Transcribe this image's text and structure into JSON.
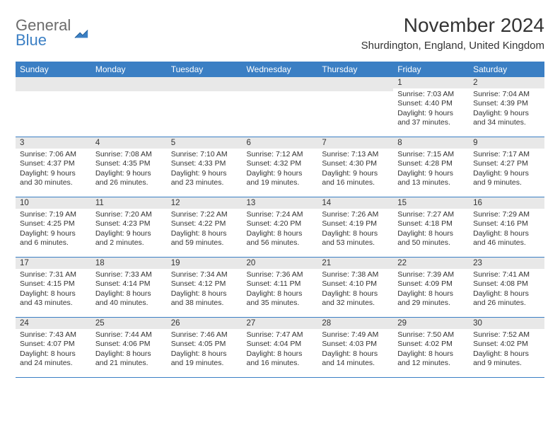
{
  "logo": {
    "line1": "General",
    "line2": "Blue"
  },
  "title": "November 2024",
  "location": "Shurdington, England, United Kingdom",
  "colors": {
    "header_bg": "#3b7fc4",
    "header_fg": "#ffffff",
    "daynum_bg": "#e8e8e8",
    "rule": "#3b7fc4",
    "text": "#333333",
    "logo_gray": "#6b6b6b",
    "logo_blue": "#3b7fc4"
  },
  "weekdays": [
    "Sunday",
    "Monday",
    "Tuesday",
    "Wednesday",
    "Thursday",
    "Friday",
    "Saturday"
  ],
  "weeks": [
    [
      null,
      null,
      null,
      null,
      null,
      {
        "n": "1",
        "sr": "7:03 AM",
        "ss": "4:40 PM",
        "dl": "9 hours and 37 minutes."
      },
      {
        "n": "2",
        "sr": "7:04 AM",
        "ss": "4:39 PM",
        "dl": "9 hours and 34 minutes."
      }
    ],
    [
      {
        "n": "3",
        "sr": "7:06 AM",
        "ss": "4:37 PM",
        "dl": "9 hours and 30 minutes."
      },
      {
        "n": "4",
        "sr": "7:08 AM",
        "ss": "4:35 PM",
        "dl": "9 hours and 26 minutes."
      },
      {
        "n": "5",
        "sr": "7:10 AM",
        "ss": "4:33 PM",
        "dl": "9 hours and 23 minutes."
      },
      {
        "n": "6",
        "sr": "7:12 AM",
        "ss": "4:32 PM",
        "dl": "9 hours and 19 minutes."
      },
      {
        "n": "7",
        "sr": "7:13 AM",
        "ss": "4:30 PM",
        "dl": "9 hours and 16 minutes."
      },
      {
        "n": "8",
        "sr": "7:15 AM",
        "ss": "4:28 PM",
        "dl": "9 hours and 13 minutes."
      },
      {
        "n": "9",
        "sr": "7:17 AM",
        "ss": "4:27 PM",
        "dl": "9 hours and 9 minutes."
      }
    ],
    [
      {
        "n": "10",
        "sr": "7:19 AM",
        "ss": "4:25 PM",
        "dl": "9 hours and 6 minutes."
      },
      {
        "n": "11",
        "sr": "7:20 AM",
        "ss": "4:23 PM",
        "dl": "9 hours and 2 minutes."
      },
      {
        "n": "12",
        "sr": "7:22 AM",
        "ss": "4:22 PM",
        "dl": "8 hours and 59 minutes."
      },
      {
        "n": "13",
        "sr": "7:24 AM",
        "ss": "4:20 PM",
        "dl": "8 hours and 56 minutes."
      },
      {
        "n": "14",
        "sr": "7:26 AM",
        "ss": "4:19 PM",
        "dl": "8 hours and 53 minutes."
      },
      {
        "n": "15",
        "sr": "7:27 AM",
        "ss": "4:18 PM",
        "dl": "8 hours and 50 minutes."
      },
      {
        "n": "16",
        "sr": "7:29 AM",
        "ss": "4:16 PM",
        "dl": "8 hours and 46 minutes."
      }
    ],
    [
      {
        "n": "17",
        "sr": "7:31 AM",
        "ss": "4:15 PM",
        "dl": "8 hours and 43 minutes."
      },
      {
        "n": "18",
        "sr": "7:33 AM",
        "ss": "4:14 PM",
        "dl": "8 hours and 40 minutes."
      },
      {
        "n": "19",
        "sr": "7:34 AM",
        "ss": "4:12 PM",
        "dl": "8 hours and 38 minutes."
      },
      {
        "n": "20",
        "sr": "7:36 AM",
        "ss": "4:11 PM",
        "dl": "8 hours and 35 minutes."
      },
      {
        "n": "21",
        "sr": "7:38 AM",
        "ss": "4:10 PM",
        "dl": "8 hours and 32 minutes."
      },
      {
        "n": "22",
        "sr": "7:39 AM",
        "ss": "4:09 PM",
        "dl": "8 hours and 29 minutes."
      },
      {
        "n": "23",
        "sr": "7:41 AM",
        "ss": "4:08 PM",
        "dl": "8 hours and 26 minutes."
      }
    ],
    [
      {
        "n": "24",
        "sr": "7:43 AM",
        "ss": "4:07 PM",
        "dl": "8 hours and 24 minutes."
      },
      {
        "n": "25",
        "sr": "7:44 AM",
        "ss": "4:06 PM",
        "dl": "8 hours and 21 minutes."
      },
      {
        "n": "26",
        "sr": "7:46 AM",
        "ss": "4:05 PM",
        "dl": "8 hours and 19 minutes."
      },
      {
        "n": "27",
        "sr": "7:47 AM",
        "ss": "4:04 PM",
        "dl": "8 hours and 16 minutes."
      },
      {
        "n": "28",
        "sr": "7:49 AM",
        "ss": "4:03 PM",
        "dl": "8 hours and 14 minutes."
      },
      {
        "n": "29",
        "sr": "7:50 AM",
        "ss": "4:02 PM",
        "dl": "8 hours and 12 minutes."
      },
      {
        "n": "30",
        "sr": "7:52 AM",
        "ss": "4:02 PM",
        "dl": "8 hours and 9 minutes."
      }
    ]
  ],
  "labels": {
    "sunrise": "Sunrise: ",
    "sunset": "Sunset: ",
    "daylight": "Daylight: "
  }
}
